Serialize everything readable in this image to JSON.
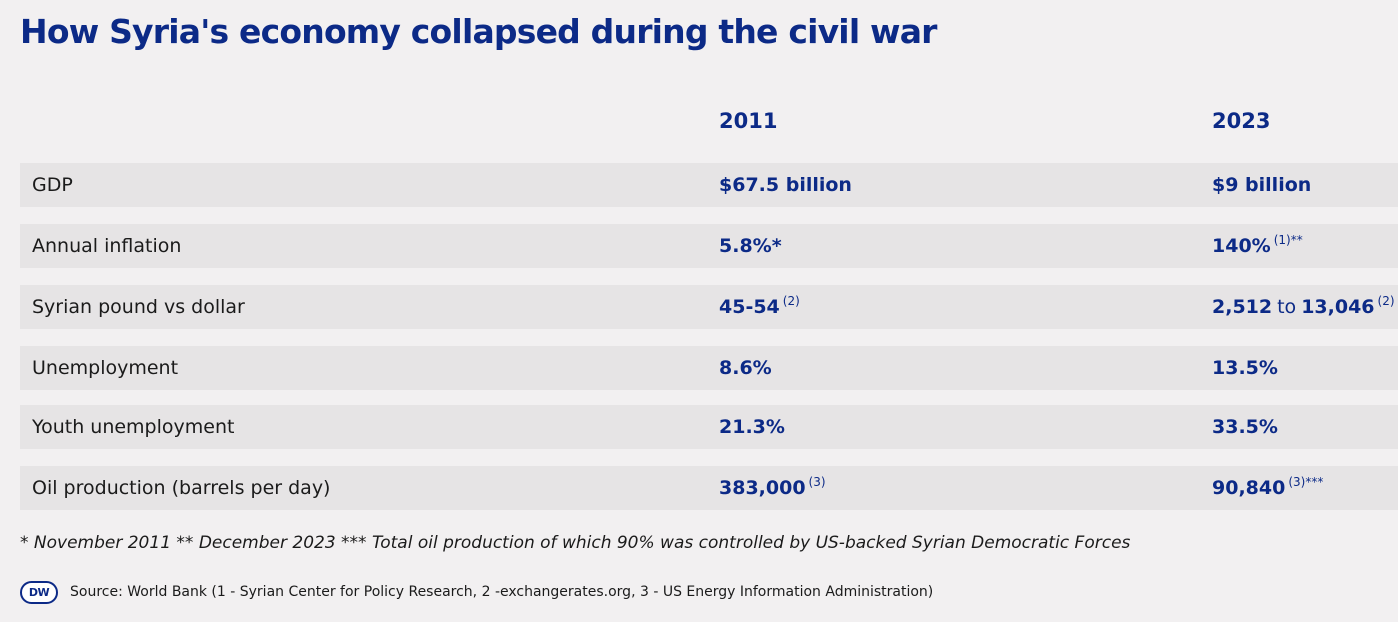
{
  "chart_data": {
    "type": "table",
    "title": "How Syria's economy collapsed during the civil war",
    "columns": [
      "2011",
      "2023"
    ],
    "rows": [
      {
        "label": "GDP",
        "v2011": {
          "value": "$67.5 billion",
          "note": ""
        },
        "v2023": {
          "value": "$9 billion",
          "note": ""
        }
      },
      {
        "label": "Annual inflation",
        "v2011": {
          "value": "5.8%*",
          "note": ""
        },
        "v2023": {
          "value": "140%",
          "note": "(1)**"
        }
      },
      {
        "label": "Syrian pound vs dollar",
        "v2011": {
          "value": "45-54",
          "note": "(2)"
        },
        "v2023": {
          "value_from": "2,512",
          "connector": "to",
          "value_to": "13,046",
          "note": "(2)"
        }
      },
      {
        "label": "Unemployment",
        "v2011": {
          "value": "8.6%",
          "note": ""
        },
        "v2023": {
          "value": "13.5%",
          "note": ""
        }
      },
      {
        "label": "Youth unemployment",
        "v2011": {
          "value": "21.3%",
          "note": ""
        },
        "v2023": {
          "value": "33.5%",
          "note": ""
        }
      },
      {
        "label": "Oil production (barrels per day)",
        "v2011": {
          "value": "383,000",
          "note": "(3)"
        },
        "v2023": {
          "value": "90,840",
          "note": "(3)***"
        }
      }
    ],
    "footnote": "* November 2011 ** December 2023 *** Total oil production of which 90% was controlled by US-backed Syrian Democratic Forces",
    "source": "Source: World Bank (1 - Syrian Center for Policy Research, 2 -exchangerates.org, 3 - US Energy Information Administration)"
  },
  "brand": {
    "logo_text": "DW",
    "accent_color": "#0c2a87",
    "row_color": "#e6e4e5",
    "background_color": "#f2f0f1"
  }
}
